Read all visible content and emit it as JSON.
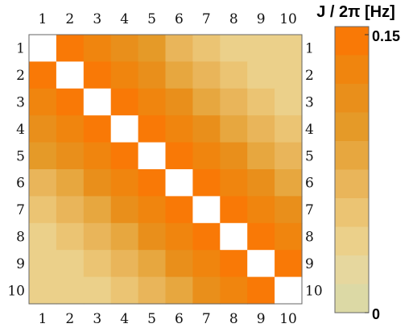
{
  "chart_data": {
    "type": "heatmap",
    "rows": [
      "1",
      "2",
      "3",
      "4",
      "5",
      "6",
      "7",
      "8",
      "9",
      "10"
    ],
    "cols": [
      "1",
      "2",
      "3",
      "4",
      "5",
      "6",
      "7",
      "8",
      "9",
      "10"
    ],
    "values": [
      [
        null,
        0.15,
        0.125,
        0.105,
        0.09,
        0.065,
        0.05,
        0.04,
        0.035,
        0.03
      ],
      [
        0.15,
        null,
        0.15,
        0.125,
        0.105,
        0.085,
        0.065,
        0.05,
        0.04,
        0.035
      ],
      [
        0.125,
        0.15,
        null,
        0.15,
        0.125,
        0.105,
        0.08,
        0.065,
        0.05,
        0.04
      ],
      [
        0.105,
        0.125,
        0.15,
        null,
        0.145,
        0.125,
        0.105,
        0.085,
        0.07,
        0.055
      ],
      [
        0.09,
        0.105,
        0.125,
        0.145,
        null,
        0.145,
        0.125,
        0.105,
        0.085,
        0.07
      ],
      [
        0.065,
        0.085,
        0.105,
        0.125,
        0.145,
        null,
        0.145,
        0.125,
        0.105,
        0.085
      ],
      [
        0.05,
        0.065,
        0.08,
        0.105,
        0.125,
        0.145,
        null,
        0.145,
        0.125,
        0.105
      ],
      [
        0.04,
        0.05,
        0.065,
        0.085,
        0.105,
        0.125,
        0.145,
        null,
        0.15,
        0.13
      ],
      [
        0.035,
        0.04,
        0.05,
        0.07,
        0.085,
        0.105,
        0.125,
        0.15,
        null,
        0.15
      ],
      [
        0.03,
        0.035,
        0.04,
        0.055,
        0.07,
        0.085,
        0.105,
        0.13,
        0.15,
        null
      ]
    ],
    "colorbar": {
      "title": "J / 2π [Hz]",
      "min": 0,
      "max": 0.15,
      "min_label": "0",
      "max_label": "0.15",
      "steps": 10,
      "colors": [
        "#dcd9a5",
        "#e6d79e",
        "#ebd08a",
        "#ebc473",
        "#e9b55a",
        "#e7a73f",
        "#e59a28",
        "#e98f1b",
        "#f0850e",
        "#f97906"
      ]
    },
    "diagonal_color": "#ffffff",
    "grid": false
  }
}
